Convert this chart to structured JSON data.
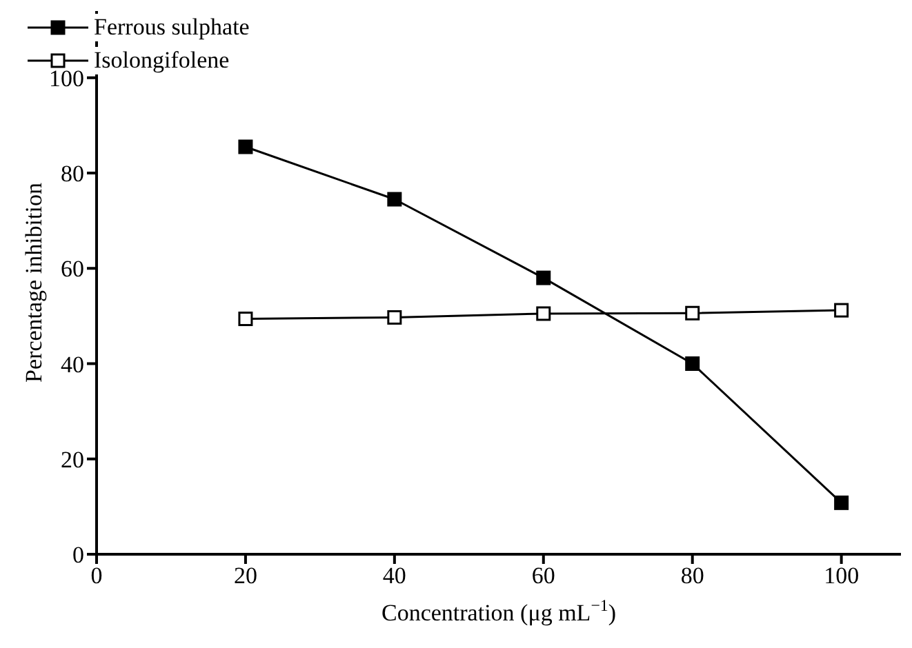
{
  "chart_data": {
    "type": "line",
    "xlabel": "Concentration (μg mL$^{−1}$)",
    "ylabel": "Percentage inhibition",
    "x": [
      20,
      40,
      60,
      80,
      100
    ],
    "series": [
      {
        "name": "Ferrous sulphate",
        "color": "#000000",
        "values": [
          85.5,
          74.5,
          58,
          40,
          10.8
        ]
      },
      {
        "name": "Isolongifolene",
        "color": "#000000",
        "values": [
          49.4,
          49.7,
          50.5,
          50.6,
          51.2
        ]
      }
    ],
    "xlim": [
      0,
      108
    ],
    "xticks": [
      0,
      20,
      40,
      60,
      80,
      100
    ],
    "ylim": [
      0,
      114
    ],
    "yticks": [
      0,
      20,
      40,
      60,
      80,
      100
    ],
    "marker": "square",
    "line_style": "solid",
    "legend": "top left",
    "grid": false
  }
}
